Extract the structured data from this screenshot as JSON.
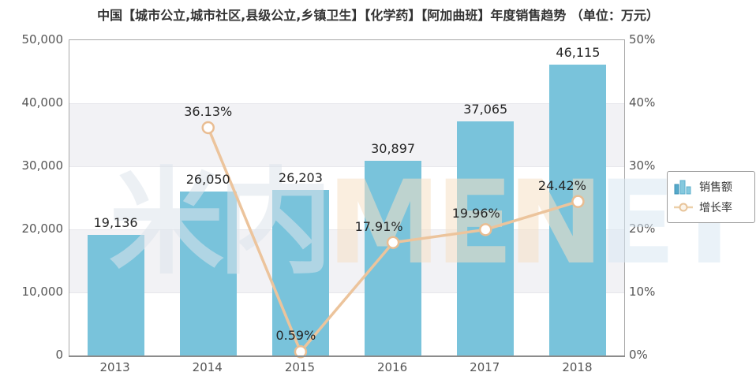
{
  "title": "中国【城市公立,城市社区,县级公立,乡镇卫生】【化学药】【阿加曲班】年度销售趋势 （单位：万元）",
  "legend": {
    "items": [
      {
        "label": "销售额",
        "icon": "bar-chart-icon"
      },
      {
        "label": "增长率",
        "icon": "line-marker-icon"
      }
    ]
  },
  "watermark": {
    "text": "米内MENET",
    "glyph_colors": [
      "#dde5ec",
      "#dde5ec",
      "#f7e1c6",
      "#f7e1c6",
      "#f7e1c6",
      "#d9e8f4",
      "#d9e8f4"
    ]
  },
  "colors": {
    "bar": "#79c3db",
    "line": "#ecc49c",
    "marker_fill": "#ffffff",
    "marker_stroke": "#e9bd92",
    "band": "#f2f2f5",
    "plot_border": "#a8a8a8",
    "axis_line": "#8c8c8c",
    "label_text": "#262626",
    "axis_text": "#555555"
  },
  "chart_data": {
    "type": "bar",
    "subtype": "bar+line-dual-axis",
    "title": "中国【城市公立,城市社区,县级公立,乡镇卫生】【化学药】【阿加曲班】年度销售趋势 （单位：万元）",
    "categories": [
      "2013",
      "2014",
      "2015",
      "2016",
      "2017",
      "2018"
    ],
    "series": [
      {
        "name": "销售额",
        "type": "bar",
        "axis": "left",
        "values": [
          19136,
          26050,
          26203,
          30897,
          37065,
          46115
        ],
        "labels": [
          "19,136",
          "26,050",
          "26,203",
          "30,897",
          "37,065",
          "46,115"
        ]
      },
      {
        "name": "增长率",
        "type": "line",
        "axis": "right",
        "values": [
          null,
          36.13,
          0.59,
          17.91,
          19.96,
          24.42
        ],
        "labels": [
          null,
          "36.13%",
          "0.59%",
          "17.91%",
          "19.96%",
          "24.42%"
        ]
      }
    ],
    "left_axis": {
      "min": 0,
      "max": 50000,
      "step": 10000,
      "tick_labels": [
        "0",
        "10,000",
        "20,000",
        "30,000",
        "40,000",
        "50,000"
      ]
    },
    "right_axis": {
      "min": 0,
      "max": 50,
      "step": 10,
      "tick_labels": [
        "0%",
        "10%",
        "20%",
        "30%",
        "40%",
        "50%"
      ]
    },
    "legend_position": "right",
    "grid": "alternating-horizontal-bands"
  }
}
